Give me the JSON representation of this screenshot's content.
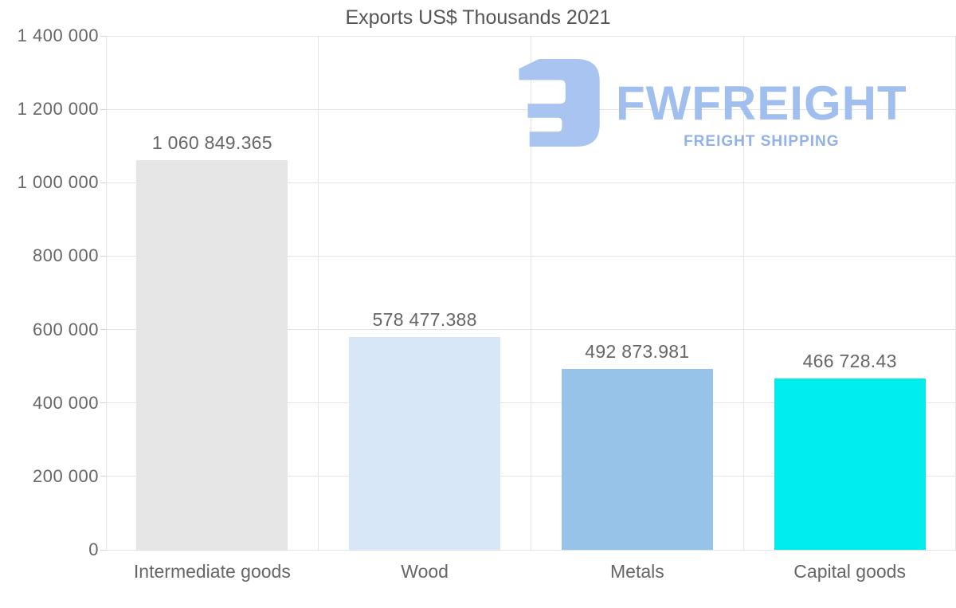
{
  "title": "Exports US$ Thousands 2021",
  "watermark": {
    "brand": "FWFREIGHT",
    "tagline": "FREIGHT SHIPPING",
    "icon": "fwfreight-f-icon",
    "icon_color": "#a9c4f0",
    "brand_color": "#a0beee",
    "tagline_color": "#93b1e9"
  },
  "chart_data": {
    "type": "bar",
    "title": "Exports US$ Thousands 2021",
    "categories": [
      "Intermediate goods",
      "Wood",
      "Metals",
      "Capital goods"
    ],
    "values": [
      1060849.365,
      578477.388,
      492873.981,
      466728.43
    ],
    "value_labels": [
      "1 060 849.365",
      "578 477.388",
      "492 873.981",
      "466 728.43"
    ],
    "bar_colors": [
      "#e6e6e6",
      "#d7e7f8",
      "#97c3e8",
      "#00edee"
    ],
    "xlabel": "",
    "ylabel": "",
    "ylim": [
      0,
      1400000
    ],
    "ytick_step": 200000,
    "ytick_labels": [
      "0",
      "200 000",
      "400 000",
      "600 000",
      "800 000",
      "1 000 000",
      "1 200 000",
      "1 400 000"
    ],
    "grid": true,
    "legend": false,
    "label_color": "#666666",
    "title_color": "#555555"
  }
}
